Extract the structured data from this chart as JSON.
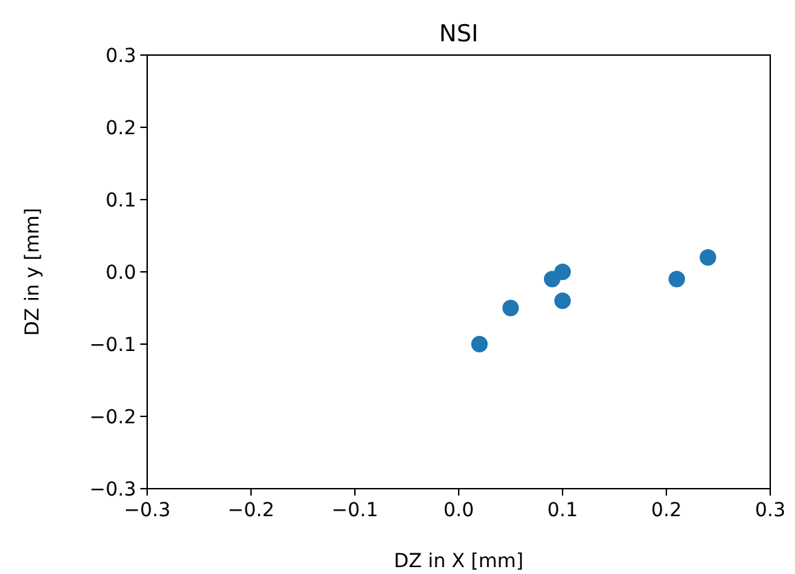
{
  "chart_data": {
    "type": "scatter",
    "title": "NSI",
    "xlabel": "DZ in X [mm]",
    "ylabel": "DZ in y [mm]",
    "x": [
      0.02,
      0.05,
      0.09,
      0.1,
      0.1,
      0.21,
      0.24
    ],
    "series": [
      {
        "color": "#1f77b4",
        "values": [
          -0.1,
          -0.05,
          -0.01,
          0.0,
          -0.04,
          -0.01,
          0.02
        ]
      }
    ],
    "xlim": [
      -0.3,
      0.3
    ],
    "ylim": [
      -0.3,
      0.3
    ],
    "xticks": [
      {
        "value": -0.3,
        "label": "−0.3"
      },
      {
        "value": -0.2,
        "label": "−0.2"
      },
      {
        "value": -0.1,
        "label": "−0.1"
      },
      {
        "value": 0,
        "label": "0.0"
      },
      {
        "value": 0.1,
        "label": "0.1"
      },
      {
        "value": 0.2,
        "label": "0.2"
      },
      {
        "value": 0.3,
        "label": "0.3"
      }
    ],
    "yticks": [
      {
        "value": -0.3,
        "label": "−0.3"
      },
      {
        "value": -0.2,
        "label": "−0.2"
      },
      {
        "value": -0.1,
        "label": "−0.1"
      },
      {
        "value": 0,
        "label": "0.0"
      },
      {
        "value": 0.1,
        "label": "0.1"
      },
      {
        "value": 0.2,
        "label": "0.2"
      },
      {
        "value": 0.3,
        "label": "0.3"
      }
    ],
    "marker": "circle",
    "grid": false
  }
}
